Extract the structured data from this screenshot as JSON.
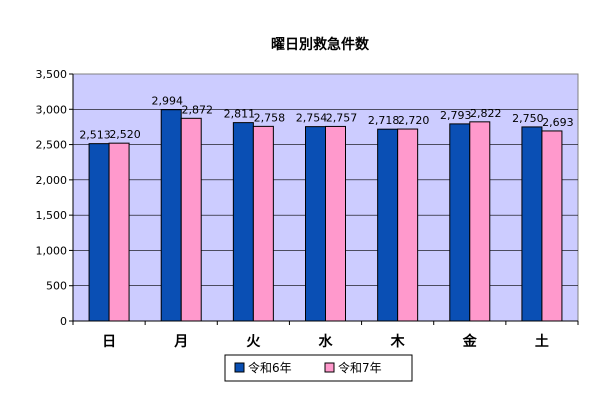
{
  "chart_data": {
    "type": "bar",
    "title": "曜日別救急件数",
    "categories": [
      "日",
      "月",
      "火",
      "水",
      "木",
      "金",
      "土"
    ],
    "series": [
      {
        "name": "令和6年",
        "values": [
          2513,
          2994,
          2811,
          2754,
          2718,
          2793,
          2750
        ],
        "labels": [
          "2,513",
          "2,994",
          "2,811",
          "2,754",
          "2,718",
          "2,793",
          "2,750"
        ],
        "color": "#0a4fb4"
      },
      {
        "name": "令和7年",
        "values": [
          2520,
          2872,
          2758,
          2757,
          2720,
          2822,
          2693
        ],
        "labels": [
          "2,520",
          "2,872",
          "2,758",
          "2,757",
          "2,720",
          "2,822",
          "2,693"
        ],
        "color": "#ff99cc"
      }
    ],
    "ylim": [
      0,
      3500
    ],
    "yticks": [
      0,
      500,
      1000,
      1500,
      2000,
      2500,
      3000,
      3500
    ],
    "ytick_labels": [
      "0",
      "500",
      "1,000",
      "1,500",
      "2,000",
      "2,500",
      "3,000",
      "3,500"
    ],
    "grid": true,
    "plot_background": "#ccccff",
    "legend_position": "bottom"
  }
}
